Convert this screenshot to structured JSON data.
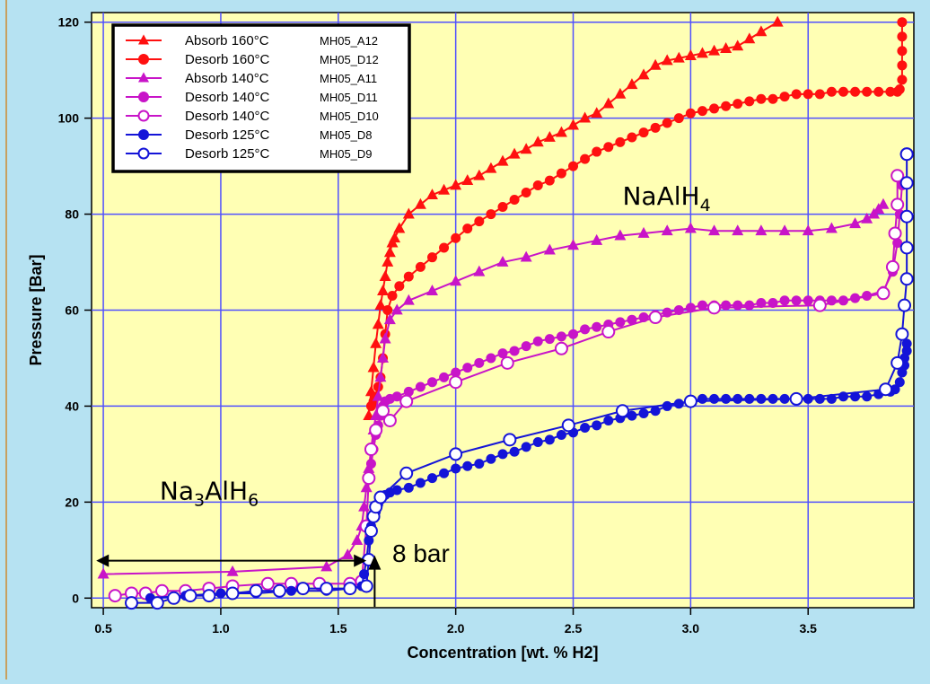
{
  "chart_data": {
    "type": "scatter",
    "title": "",
    "xlabel": "Concentration [wt. % H2]",
    "ylabel": "Pressure [Bar]",
    "xlim": [
      0.45,
      3.95
    ],
    "ylim": [
      -2,
      122
    ],
    "xticks": [
      "0.5",
      "1.0",
      "1.5",
      "2.0",
      "2.5",
      "3.0",
      "3.5"
    ],
    "yticks": [
      "0",
      "20",
      "40",
      "60",
      "80",
      "100",
      "120"
    ],
    "grid": true,
    "legend_position": "top-left",
    "plot_background": "#ffffb4",
    "region_labels": {
      "high": {
        "parts": [
          {
            "t": "NaAlH",
            "sub": false
          },
          {
            "t": "4",
            "sub": true
          }
        ]
      },
      "low": {
        "parts": [
          {
            "t": "Na",
            "sub": false
          },
          {
            "t": "3",
            "sub": true
          },
          {
            "t": "AlH",
            "sub": false
          },
          {
            "t": "6",
            "sub": true
          }
        ]
      }
    },
    "annotation": {
      "text": "8 bar"
    },
    "series": [
      {
        "name": "Absorb 160°C",
        "code": "MH05_A12",
        "color": "#ff1010",
        "marker": "triangle",
        "fill": true,
        "x": [
          1.63,
          1.64,
          1.65,
          1.66,
          1.67,
          1.68,
          1.69,
          1.7,
          1.71,
          1.72,
          1.73,
          1.74,
          1.76,
          1.8,
          1.85,
          1.9,
          1.95,
          2.0,
          2.05,
          2.1,
          2.15,
          2.2,
          2.25,
          2.3,
          2.35,
          2.4,
          2.45,
          2.5,
          2.55,
          2.6,
          2.65,
          2.7,
          2.75,
          2.8,
          2.85,
          2.9,
          2.95,
          3.0,
          3.05,
          3.1,
          3.15,
          3.2,
          3.25,
          3.3,
          3.37
        ],
        "y": [
          38,
          43,
          48,
          53,
          57,
          61,
          64,
          67,
          70,
          72,
          74,
          75,
          77,
          80,
          82,
          84,
          85,
          86,
          87,
          88,
          89.5,
          91,
          92.5,
          93.5,
          95,
          96,
          97,
          98.5,
          100,
          101,
          103,
          105,
          107,
          109,
          111,
          112,
          112.5,
          113,
          113.5,
          114,
          114.5,
          115,
          116.5,
          118,
          120
        ]
      },
      {
        "name": "Desorb 160°C",
        "code": "MH05_D12",
        "color": "#ff1010",
        "marker": "circle",
        "fill": true,
        "x": [
          3.9,
          3.9,
          3.9,
          3.9,
          3.9,
          3.89,
          3.88,
          3.85,
          3.8,
          3.75,
          3.7,
          3.65,
          3.6,
          3.55,
          3.5,
          3.45,
          3.4,
          3.35,
          3.3,
          3.25,
          3.2,
          3.15,
          3.1,
          3.05,
          3.0,
          2.95,
          2.9,
          2.85,
          2.8,
          2.75,
          2.7,
          2.65,
          2.6,
          2.55,
          2.5,
          2.45,
          2.4,
          2.35,
          2.3,
          2.25,
          2.2,
          2.15,
          2.1,
          2.05,
          2.0,
          1.95,
          1.9,
          1.85,
          1.8,
          1.76,
          1.73,
          1.71,
          1.7,
          1.69,
          1.68,
          1.67,
          1.66,
          1.65,
          1.64
        ],
        "y": [
          120,
          117,
          114,
          111,
          108,
          106,
          105.5,
          105.5,
          105.5,
          105.5,
          105.5,
          105.5,
          105.5,
          105,
          105,
          105,
          104.5,
          104,
          104,
          103.5,
          103,
          102.5,
          102,
          101.5,
          101,
          100,
          99,
          98,
          97,
          96,
          95,
          94,
          93,
          91.5,
          90,
          88.5,
          87,
          86,
          84.5,
          83,
          81.5,
          80,
          78.5,
          77,
          75,
          73,
          71,
          69,
          67,
          65,
          63,
          60,
          55,
          50,
          46,
          44,
          42,
          41,
          40
        ]
      },
      {
        "name": "Absorb 140°C",
        "code": "MH05_A11",
        "color": "#c814c8",
        "marker": "triangle",
        "fill": true,
        "x": [
          0.5,
          1.05,
          1.45,
          1.54,
          1.58,
          1.6,
          1.61,
          1.62,
          1.63,
          1.64,
          1.65,
          1.66,
          1.67,
          1.68,
          1.69,
          1.7,
          1.72,
          1.75,
          1.8,
          1.9,
          2.0,
          2.1,
          2.2,
          2.3,
          2.4,
          2.5,
          2.6,
          2.7,
          2.8,
          2.9,
          3.0,
          3.1,
          3.2,
          3.3,
          3.4,
          3.5,
          3.6,
          3.7,
          3.75,
          3.78,
          3.8,
          3.82
        ],
        "y": [
          5,
          5.5,
          6.5,
          9,
          12,
          15,
          19,
          23,
          27,
          31,
          35,
          38,
          42,
          46,
          50,
          54,
          58,
          60,
          62,
          64,
          66,
          68,
          70,
          71,
          72.5,
          73.5,
          74.5,
          75.5,
          76,
          76.5,
          77,
          76.5,
          76.5,
          76.5,
          76.5,
          76.5,
          77,
          78,
          79,
          80,
          81,
          82
        ]
      },
      {
        "name": "Desorb 140°C",
        "code": "MH05_D11",
        "color": "#c814c8",
        "marker": "circle",
        "fill": true,
        "x": [
          3.9,
          3.89,
          3.88,
          3.86,
          3.82,
          3.75,
          3.7,
          3.65,
          3.6,
          3.55,
          3.5,
          3.45,
          3.4,
          3.35,
          3.3,
          3.25,
          3.2,
          3.15,
          3.1,
          3.05,
          3.0,
          2.95,
          2.9,
          2.85,
          2.8,
          2.75,
          2.7,
          2.65,
          2.6,
          2.55,
          2.5,
          2.45,
          2.4,
          2.35,
          2.3,
          2.25,
          2.2,
          2.15,
          2.1,
          2.05,
          2.0,
          1.95,
          1.9,
          1.85,
          1.8,
          1.75,
          1.72,
          1.7,
          1.69,
          1.68,
          1.67,
          1.66,
          1.65,
          1.64,
          1.63
        ],
        "y": [
          86,
          80,
          74,
          68,
          64,
          63,
          62.5,
          62,
          62,
          62,
          62,
          62,
          62,
          61.5,
          61.5,
          61,
          61,
          61,
          61,
          61,
          60.5,
          60,
          59.5,
          59,
          58.5,
          58,
          57.5,
          57,
          56.5,
          56,
          55,
          54.5,
          54,
          53.5,
          52.5,
          51.5,
          51,
          50,
          49,
          48,
          47,
          46,
          45,
          44,
          43,
          42,
          41.5,
          41,
          40,
          38,
          36,
          34,
          31,
          28,
          25
        ]
      },
      {
        "name": "Desorb 140°C",
        "code": "MH05_D10",
        "color": "#c814c8",
        "marker": "circle",
        "fill": false,
        "x": [
          0.55,
          0.62,
          0.68,
          0.75,
          0.85,
          0.95,
          1.05,
          1.2,
          1.3,
          1.42,
          1.55,
          1.6,
          1.62,
          1.63,
          1.64,
          1.66,
          1.69,
          1.72,
          1.79,
          2.0,
          2.22,
          2.45,
          2.65,
          2.85,
          3.1,
          3.55,
          3.82,
          3.86,
          3.87,
          3.88,
          3.88
        ],
        "y": [
          0.5,
          1,
          1,
          1.5,
          1.5,
          2,
          2.5,
          3,
          3,
          3,
          3,
          3.5,
          15,
          25,
          31,
          35,
          39,
          37,
          41,
          45,
          49,
          52,
          55.5,
          58.5,
          60.5,
          61,
          63.5,
          69,
          76,
          82,
          88
        ]
      },
      {
        "name": "Desorb 125°C",
        "code": "MH05_D8",
        "color": "#1414d8",
        "marker": "circle",
        "fill": true,
        "x": [
          3.92,
          3.92,
          3.91,
          3.91,
          3.9,
          3.89,
          3.87,
          3.85,
          3.8,
          3.75,
          3.7,
          3.65,
          3.6,
          3.55,
          3.5,
          3.45,
          3.4,
          3.35,
          3.3,
          3.25,
          3.2,
          3.15,
          3.1,
          3.05,
          3.0,
          2.95,
          2.9,
          2.85,
          2.8,
          2.75,
          2.7,
          2.65,
          2.6,
          2.55,
          2.5,
          2.45,
          2.4,
          2.35,
          2.3,
          2.25,
          2.2,
          2.15,
          2.1,
          2.05,
          2.0,
          1.95,
          1.9,
          1.85,
          1.8,
          1.75,
          1.72,
          1.7,
          1.68,
          1.67,
          1.66,
          1.65,
          1.64,
          1.63,
          1.62,
          1.61,
          1.6,
          1.55,
          1.45,
          1.3,
          1.15,
          1.0,
          0.85,
          0.7
        ],
        "y": [
          53,
          51.5,
          50,
          48.5,
          47,
          45,
          43.5,
          43,
          42.5,
          42,
          42,
          42,
          41.5,
          41.5,
          41.5,
          41.5,
          41.5,
          41.5,
          41.5,
          41.5,
          41.5,
          41.5,
          41.5,
          41.5,
          41,
          40.5,
          40,
          39,
          38.5,
          38,
          37.5,
          37,
          36,
          35.5,
          34.5,
          34,
          33,
          32.5,
          31.5,
          30.5,
          30,
          29,
          28,
          27.5,
          27,
          26,
          25,
          24,
          23,
          22.5,
          22,
          21.5,
          20.5,
          19.5,
          18,
          17,
          15,
          12,
          8,
          5,
          2.5,
          2,
          1.5,
          1.5,
          1,
          1,
          0.5,
          0
        ]
      },
      {
        "name": "Desorb 125°C",
        "code": "MH05_D9",
        "color": "#1414d8",
        "marker": "circle",
        "fill": false,
        "x": [
          0.62,
          0.73,
          0.8,
          0.87,
          0.95,
          1.05,
          1.15,
          1.25,
          1.35,
          1.45,
          1.55,
          1.62,
          1.63,
          1.64,
          1.65,
          1.66,
          1.68,
          1.79,
          2.0,
          2.23,
          2.48,
          2.71,
          3.0,
          3.45,
          3.83,
          3.88,
          3.9,
          3.91,
          3.92,
          3.92,
          3.92,
          3.92,
          3.92,
          3.92
        ],
        "y": [
          -1,
          -1,
          0,
          0.5,
          0.5,
          1,
          1.5,
          1.5,
          2,
          2,
          2,
          2.5,
          8,
          14,
          17,
          19,
          21,
          26,
          30,
          33,
          36,
          39,
          41,
          41.5,
          43.5,
          49,
          55,
          61,
          66.5,
          73,
          79.5,
          86.5,
          92.5,
          92.5
        ]
      }
    ]
  }
}
